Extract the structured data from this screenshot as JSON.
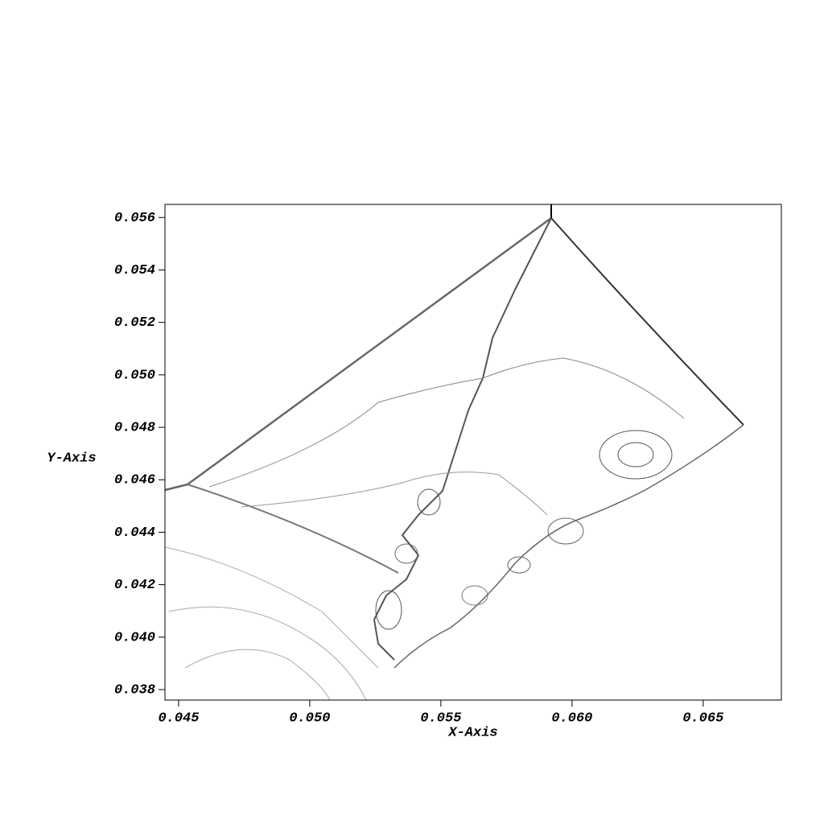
{
  "chart_data": {
    "type": "contour",
    "x_label": "X-Axis",
    "y_label": "Y-Axis",
    "xlim": [
      0.04448,
      0.06798
    ],
    "ylim": [
      0.0376,
      0.0565
    ],
    "xticks": [
      0.045,
      {
        "value": 0.05,
        "label": "0.050"
      },
      0.055,
      {
        "value": 0.06,
        "label": "0.060"
      },
      0.065
    ],
    "yticks": [
      0.038,
      {
        "value": 0.04,
        "label": "0.040"
      },
      0.042,
      0.044,
      0.046,
      0.048,
      {
        "value": 0.05,
        "label": "0.050"
      },
      0.052,
      0.054,
      0.056
    ],
    "color": "#555555"
  }
}
